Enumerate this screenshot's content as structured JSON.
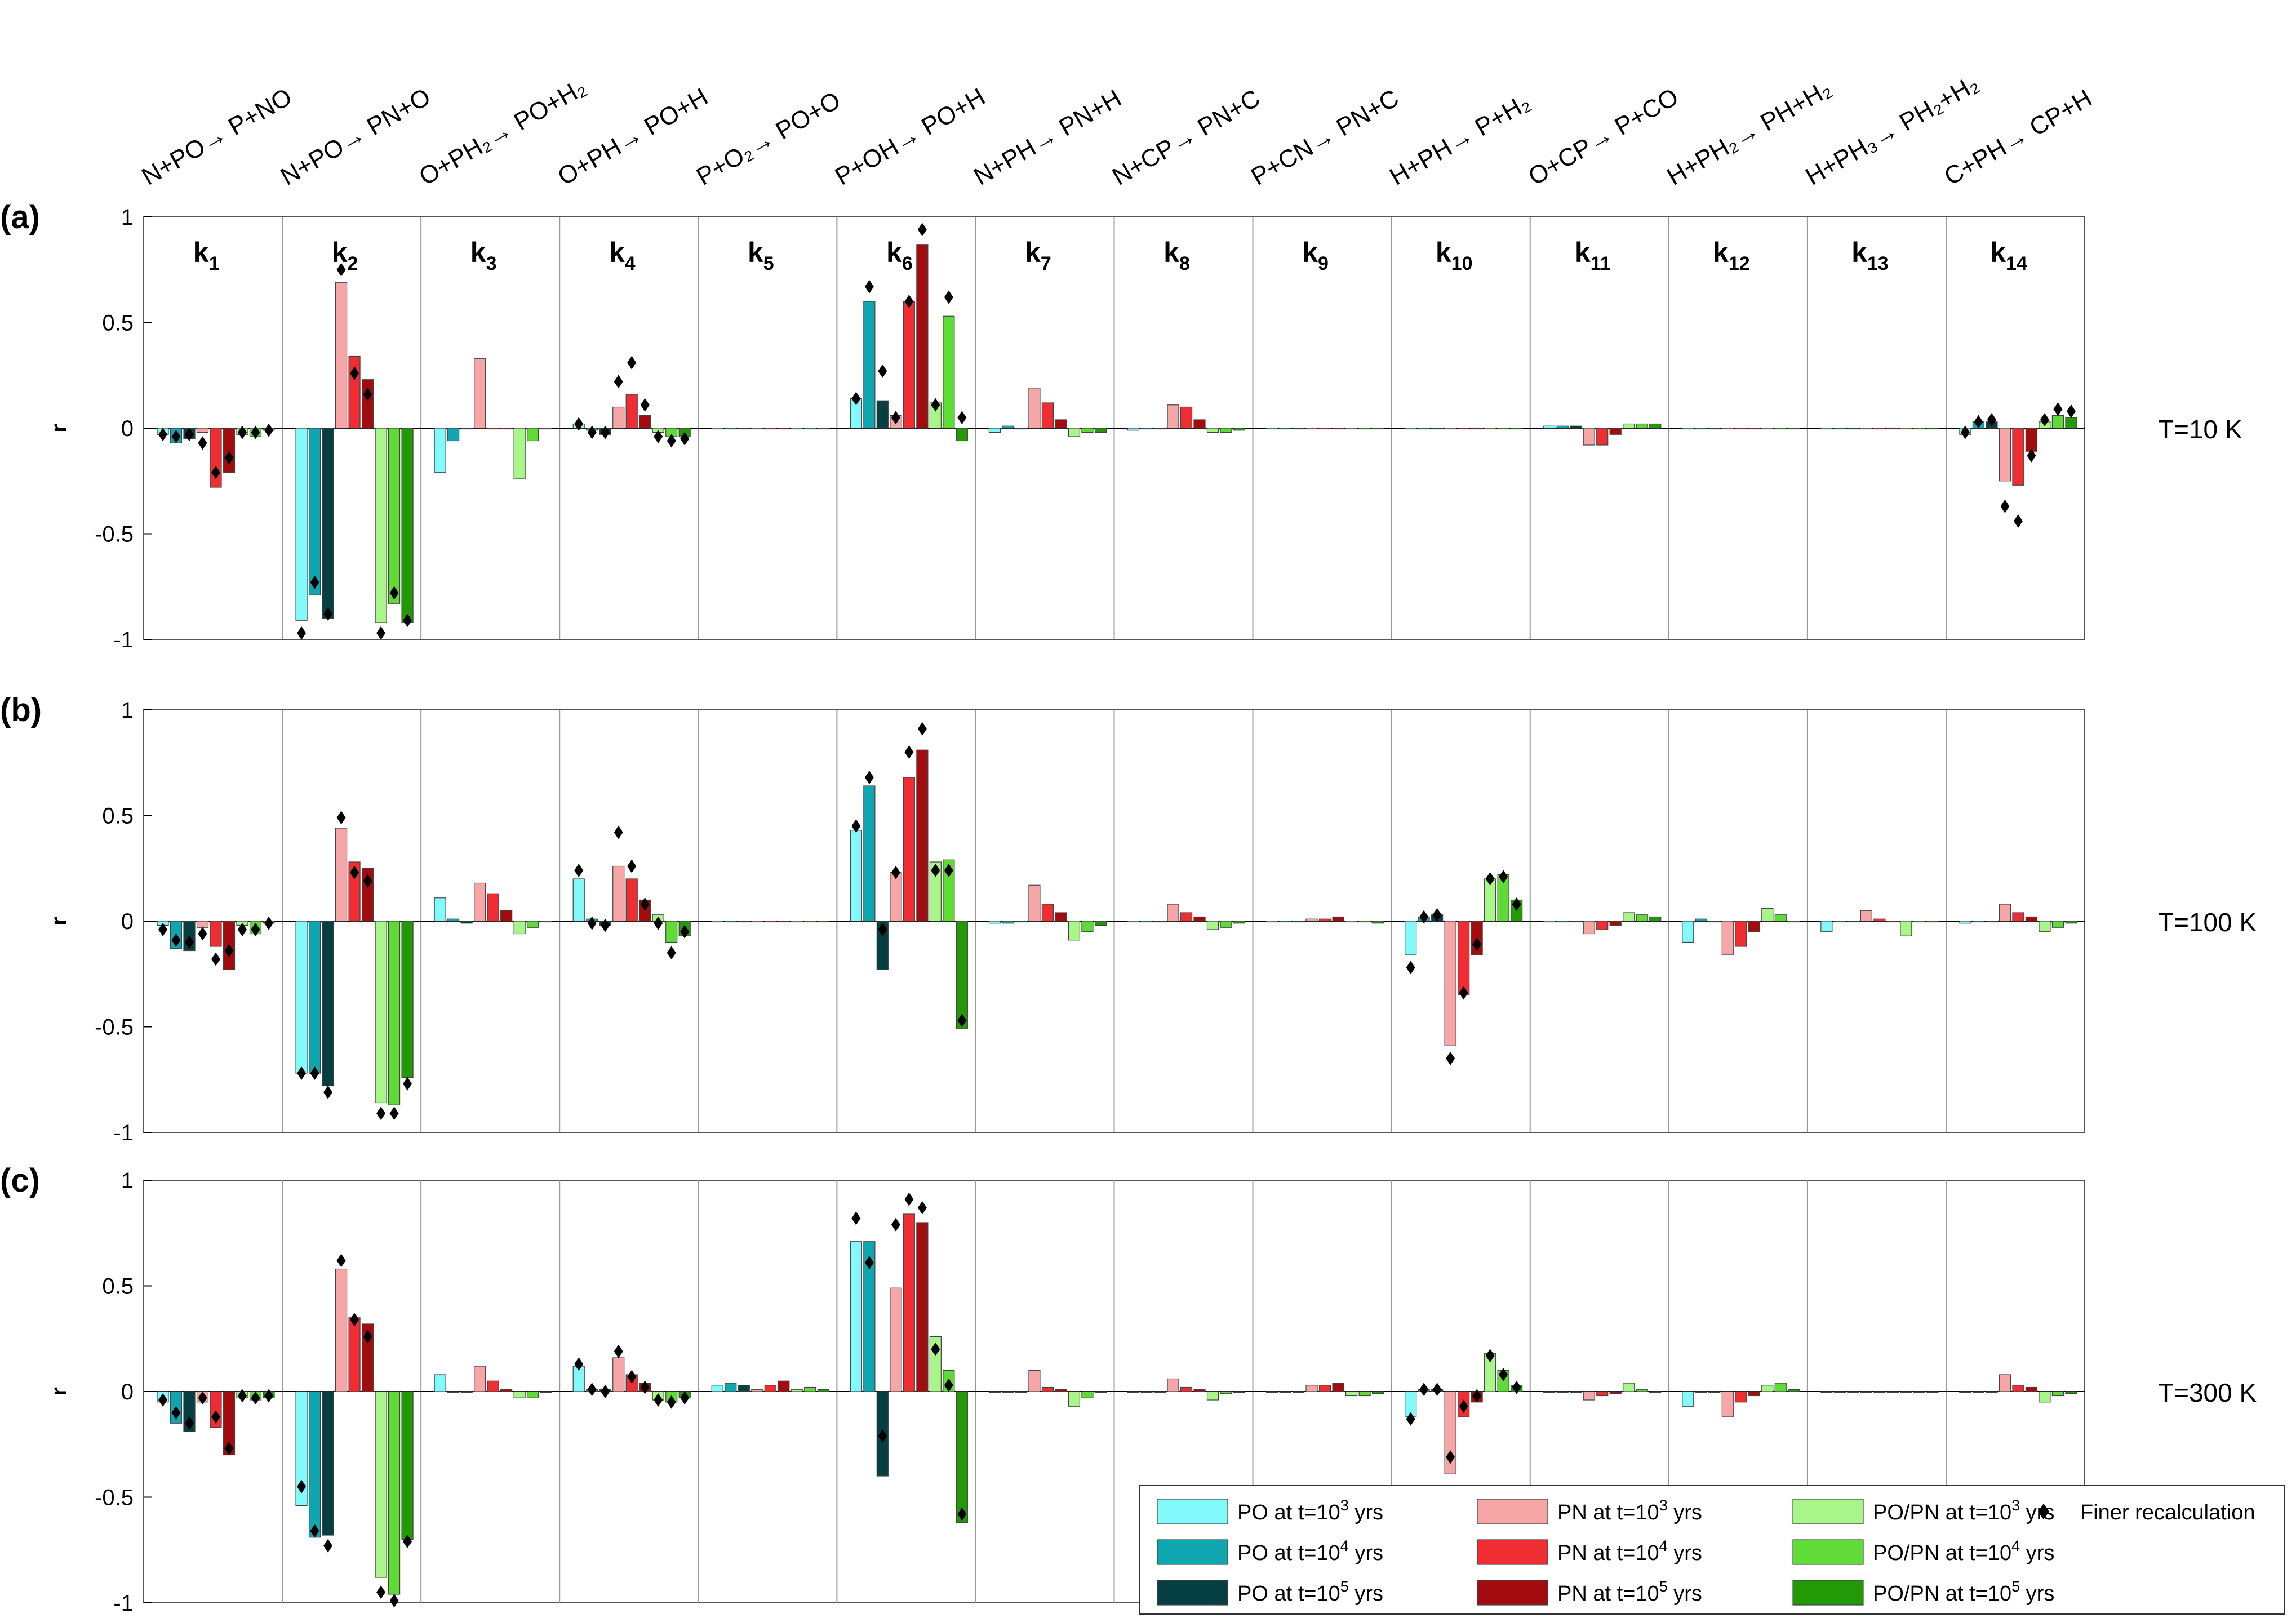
{
  "chart_data": {
    "type": "bar",
    "ylabel": "r",
    "ylim": [
      -1,
      1
    ],
    "yticks": [
      "1",
      "0.5",
      "0",
      "-0.5",
      "-1"
    ],
    "reactions": [
      "N+PO→ P+NO",
      "N+PO→ PN+O",
      "O+PH₂→ PO+H₂",
      "O+PH→ PO+H",
      "P+O₂→ PO+O",
      "P+OH→ PO+H",
      "N+PH→ PN+H",
      "N+CP→ PN+C",
      "P+CN→ PN+C",
      "H+PH→ P+H₂",
      "O+CP→ P+CO",
      "H+PH₂→ PH+H₂",
      "H+PH₃→ PH₂+H₂",
      "C+PH→ CP+H"
    ],
    "k_labels": [
      "k",
      "k",
      "k",
      "k",
      "k",
      "k",
      "k",
      "k",
      "k",
      "k",
      "k",
      "k",
      "k",
      "k"
    ],
    "k_subscripts": [
      "1",
      "2",
      "3",
      "4",
      "5",
      "6",
      "7",
      "8",
      "9",
      "10",
      "11",
      "12",
      "13",
      "14"
    ],
    "series_colors": [
      "#82f9fb",
      "#0ea7b0",
      "#053f41",
      "#f6a6a6",
      "#f12d34",
      "#a20c0f",
      "#a8f58a",
      "#5fdb35",
      "#229a08"
    ],
    "panels": [
      {
        "label": "(a)",
        "temperature": "T=10 K",
        "values": [
          [
            -0.03,
            -0.07,
            -0.05,
            -0.02,
            -0.28,
            -0.21,
            -0.03,
            -0.04,
            -0.01
          ],
          [
            -0.91,
            -0.79,
            -0.9,
            0.69,
            0.34,
            0.23,
            -0.92,
            -0.83,
            -0.92
          ],
          [
            -0.21,
            -0.06,
            0,
            0.33,
            0,
            0,
            -0.24,
            -0.06,
            0
          ],
          [
            0.02,
            -0.01,
            -0.03,
            0.1,
            0.16,
            0.06,
            -0.02,
            -0.04,
            -0.04
          ],
          [
            0,
            0,
            0,
            0,
            0,
            0,
            0,
            0,
            0
          ],
          [
            0.14,
            0.6,
            0.13,
            0.06,
            0.6,
            0.87,
            0.12,
            0.53,
            -0.06
          ],
          [
            -0.02,
            0.01,
            0,
            0.19,
            0.12,
            0.04,
            -0.04,
            -0.02,
            -0.02
          ],
          [
            -0.01,
            0,
            0,
            0.11,
            0.1,
            0.04,
            -0.02,
            -0.02,
            -0.01
          ],
          [
            0,
            0,
            0,
            0,
            0,
            0,
            0,
            0,
            0
          ],
          [
            0,
            0,
            0,
            0,
            0,
            0,
            0,
            0,
            0
          ],
          [
            0.01,
            0.01,
            0.01,
            -0.08,
            -0.08,
            -0.03,
            0.02,
            0.02,
            0.02
          ],
          [
            0,
            0,
            0,
            0,
            0,
            0,
            0,
            0,
            0
          ],
          [
            0,
            0,
            0,
            0,
            0,
            0,
            0,
            0,
            0
          ],
          [
            -0.03,
            0.03,
            0.03,
            -0.25,
            -0.27,
            -0.11,
            0.03,
            0.06,
            0.05
          ]
        ],
        "recalc": [
          [
            -0.03,
            -0.04,
            -0.03,
            -0.07,
            -0.21,
            -0.14,
            -0.02,
            -0.02,
            -0.01
          ],
          [
            -0.97,
            -0.73,
            -0.88,
            0.75,
            0.26,
            0.16,
            -0.97,
            -0.78,
            -0.91
          ],
          [
            null,
            null,
            null,
            null,
            null,
            null,
            null,
            null,
            null
          ],
          [
            0.02,
            -0.02,
            -0.02,
            0.22,
            0.31,
            0.11,
            -0.04,
            -0.06,
            -0.05
          ],
          [
            null,
            null,
            null,
            null,
            null,
            null,
            null,
            null,
            null
          ],
          [
            0.14,
            0.67,
            0.27,
            0.05,
            0.6,
            0.94,
            0.11,
            0.62,
            0.05
          ],
          [
            null,
            null,
            null,
            null,
            null,
            null,
            null,
            null,
            null
          ],
          [
            null,
            null,
            null,
            null,
            null,
            null,
            null,
            null,
            null
          ],
          [
            null,
            null,
            null,
            null,
            null,
            null,
            null,
            null,
            null
          ],
          [
            null,
            null,
            null,
            null,
            null,
            null,
            null,
            null,
            null
          ],
          [
            null,
            null,
            null,
            null,
            null,
            null,
            null,
            null,
            null
          ],
          [
            null,
            null,
            null,
            null,
            null,
            null,
            null,
            null,
            null
          ],
          [
            null,
            null,
            null,
            null,
            null,
            null,
            null,
            null,
            null
          ],
          [
            -0.02,
            0.03,
            0.04,
            -0.37,
            -0.44,
            -0.13,
            0.04,
            0.09,
            0.08
          ]
        ]
      },
      {
        "label": "(b)",
        "temperature": "T=100 K",
        "values": [
          [
            -0.02,
            -0.13,
            -0.14,
            -0.03,
            -0.12,
            -0.23,
            -0.02,
            -0.06,
            -0.01
          ],
          [
            -0.72,
            -0.72,
            -0.78,
            0.44,
            0.28,
            0.25,
            -0.86,
            -0.87,
            -0.74
          ],
          [
            0.11,
            0.01,
            -0.01,
            0.18,
            0.13,
            0.05,
            -0.06,
            -0.03,
            0
          ],
          [
            0.2,
            0.01,
            -0.02,
            0.26,
            0.2,
            0.1,
            0.03,
            -0.1,
            -0.07
          ],
          [
            0,
            0,
            0,
            0,
            0,
            0,
            0,
            0,
            0
          ],
          [
            0.43,
            0.64,
            -0.23,
            0.23,
            0.68,
            0.81,
            0.28,
            0.29,
            -0.51
          ],
          [
            -0.01,
            -0.01,
            0,
            0.17,
            0.08,
            0.04,
            -0.09,
            -0.05,
            -0.02
          ],
          [
            0,
            0,
            0,
            0.08,
            0.04,
            0.02,
            -0.04,
            -0.03,
            -0.01
          ],
          [
            0,
            0,
            0,
            0.01,
            0.01,
            0.02,
            0,
            0,
            -0.01
          ],
          [
            -0.16,
            0.02,
            0.03,
            -0.59,
            -0.35,
            -0.16,
            0.2,
            0.22,
            0.1
          ],
          [
            0,
            0,
            0,
            -0.06,
            -0.04,
            -0.02,
            0.04,
            0.03,
            0.02
          ],
          [
            -0.1,
            0.01,
            0,
            -0.16,
            -0.12,
            -0.05,
            0.06,
            0.03,
            0
          ],
          [
            -0.05,
            0,
            0,
            0.05,
            0.01,
            0,
            -0.07,
            0,
            0
          ],
          [
            -0.01,
            0,
            0,
            0.08,
            0.04,
            0.02,
            -0.05,
            -0.03,
            -0.01
          ]
        ],
        "recalc": [
          [
            -0.04,
            -0.09,
            -0.1,
            -0.06,
            -0.18,
            -0.14,
            -0.04,
            -0.04,
            -0.01
          ],
          [
            -0.72,
            -0.72,
            -0.81,
            0.49,
            0.23,
            0.19,
            -0.91,
            -0.91,
            -0.77
          ],
          [
            null,
            null,
            null,
            null,
            null,
            null,
            null,
            null,
            null
          ],
          [
            0.24,
            -0.01,
            -0.02,
            0.42,
            0.26,
            0.08,
            -0.01,
            -0.15,
            -0.05
          ],
          [
            null,
            null,
            null,
            null,
            null,
            null,
            null,
            null,
            null
          ],
          [
            0.45,
            0.68,
            -0.04,
            0.23,
            0.8,
            0.91,
            0.24,
            0.24,
            -0.47
          ],
          [
            null,
            null,
            null,
            null,
            null,
            null,
            null,
            null,
            null
          ],
          [
            null,
            null,
            null,
            null,
            null,
            null,
            null,
            null,
            null
          ],
          [
            null,
            null,
            null,
            null,
            null,
            null,
            null,
            null,
            null
          ],
          [
            -0.22,
            0.02,
            0.03,
            -0.65,
            -0.34,
            -0.11,
            0.2,
            0.21,
            0.08
          ],
          [
            null,
            null,
            null,
            null,
            null,
            null,
            null,
            null,
            null
          ],
          [
            null,
            null,
            null,
            null,
            null,
            null,
            null,
            null,
            null
          ],
          [
            null,
            null,
            null,
            null,
            null,
            null,
            null,
            null,
            null
          ],
          [
            null,
            null,
            null,
            null,
            null,
            null,
            null,
            null,
            null
          ]
        ]
      },
      {
        "label": "(c)",
        "temperature": "T=300 K",
        "values": [
          [
            -0.05,
            -0.15,
            -0.19,
            -0.05,
            -0.17,
            -0.3,
            -0.03,
            -0.04,
            -0.03
          ],
          [
            -0.54,
            -0.69,
            -0.68,
            0.58,
            0.35,
            0.32,
            -0.88,
            -0.96,
            -0.7
          ],
          [
            0.08,
            0,
            0,
            0.12,
            0.05,
            0.01,
            -0.03,
            -0.03,
            0
          ],
          [
            0.12,
            0.01,
            0.01,
            0.16,
            0.08,
            0.04,
            -0.04,
            -0.05,
            -0.03
          ],
          [
            0.03,
            0.04,
            0.03,
            0.01,
            0.03,
            0.05,
            0.01,
            0.02,
            0.01
          ],
          [
            0.71,
            0.71,
            -0.4,
            0.49,
            0.84,
            0.8,
            0.26,
            0.1,
            -0.62
          ],
          [
            0,
            0,
            0,
            0.1,
            0.02,
            0.01,
            -0.07,
            -0.03,
            0
          ],
          [
            0,
            0,
            0,
            0.06,
            0.02,
            0.01,
            -0.04,
            -0.01,
            0
          ],
          [
            0,
            0,
            0,
            0.03,
            0.03,
            0.04,
            -0.02,
            -0.02,
            -0.01
          ],
          [
            -0.12,
            0.01,
            0.01,
            -0.39,
            -0.12,
            -0.05,
            0.18,
            0.1,
            0.03
          ],
          [
            0,
            0,
            0,
            -0.04,
            -0.02,
            -0.01,
            0.04,
            0.01,
            0
          ],
          [
            -0.07,
            0,
            0,
            -0.12,
            -0.05,
            -0.02,
            0.03,
            0.04,
            0.01
          ],
          [
            0,
            0,
            0,
            0,
            0,
            0,
            0,
            0,
            0
          ],
          [
            0,
            0,
            0,
            0.08,
            0.03,
            0.02,
            -0.05,
            -0.02,
            -0.01
          ]
        ],
        "recalc": [
          [
            -0.04,
            -0.1,
            -0.15,
            -0.03,
            -0.12,
            -0.27,
            -0.02,
            -0.03,
            -0.02
          ],
          [
            -0.45,
            -0.66,
            -0.73,
            0.62,
            0.34,
            0.26,
            -0.95,
            -0.99,
            -0.71
          ],
          [
            null,
            null,
            null,
            null,
            null,
            null,
            null,
            null,
            null
          ],
          [
            0.13,
            0.01,
            0,
            0.19,
            0.07,
            0.02,
            -0.04,
            -0.05,
            -0.03
          ],
          [
            null,
            null,
            null,
            null,
            null,
            null,
            null,
            null,
            null
          ],
          [
            0.82,
            0.61,
            -0.21,
            0.79,
            0.91,
            0.87,
            0.2,
            0.03,
            -0.58
          ],
          [
            null,
            null,
            null,
            null,
            null,
            null,
            null,
            null,
            null
          ],
          [
            null,
            null,
            null,
            null,
            null,
            null,
            null,
            null,
            null
          ],
          [
            null,
            null,
            null,
            null,
            null,
            null,
            null,
            null,
            null
          ],
          [
            -0.13,
            0.01,
            0.01,
            -0.31,
            -0.07,
            -0.02,
            0.17,
            0.08,
            0.02
          ],
          [
            null,
            null,
            null,
            null,
            null,
            null,
            null,
            null,
            null
          ],
          [
            null,
            null,
            null,
            null,
            null,
            null,
            null,
            null,
            null
          ],
          [
            null,
            null,
            null,
            null,
            null,
            null,
            null,
            null,
            null
          ],
          [
            null,
            null,
            null,
            null,
            null,
            null,
            null,
            null,
            null
          ]
        ]
      }
    ],
    "legend": {
      "placement": "bottom-right",
      "entries": [
        {
          "prefix": "PO at t=10",
          "sup": "3",
          "suffix": " yrs",
          "color": "#82f9fb"
        },
        {
          "prefix": "PN at t=10",
          "sup": "3",
          "suffix": " yrs",
          "color": "#f6a6a6"
        },
        {
          "prefix": "PO/PN at t=10",
          "sup": "3",
          "suffix": " yrs",
          "color": "#a8f58a"
        },
        {
          "prefix": "PO at t=10",
          "sup": "4",
          "suffix": " yrs",
          "color": "#0ea7b0"
        },
        {
          "prefix": "PN at t=10",
          "sup": "4",
          "suffix": " yrs",
          "color": "#f12d34"
        },
        {
          "prefix": "PO/PN at t=10",
          "sup": "4",
          "suffix": " yrs",
          "color": "#5fdb35"
        },
        {
          "prefix": "PO at t=10",
          "sup": "5",
          "suffix": " yrs",
          "color": "#053f41"
        },
        {
          "prefix": "PN at t=10",
          "sup": "5",
          "suffix": " yrs",
          "color": "#a20c0f"
        },
        {
          "prefix": "PO/PN at t=10",
          "sup": "5",
          "suffix": " yrs",
          "color": "#229a08"
        }
      ],
      "marker_label": "Finer recalculation"
    }
  }
}
